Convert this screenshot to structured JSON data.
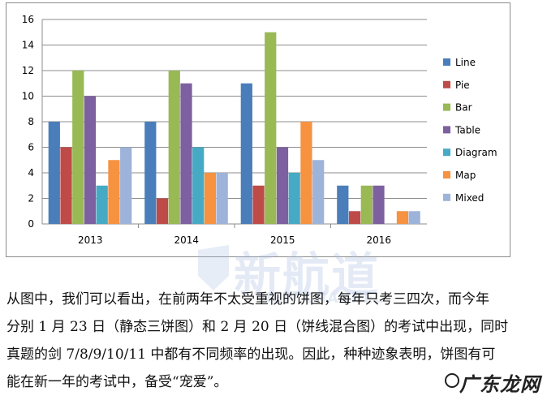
{
  "chart_data": {
    "type": "bar",
    "categories": [
      "2013",
      "2014",
      "2015",
      "2016"
    ],
    "yticks": [
      0,
      2,
      4,
      6,
      8,
      10,
      12,
      14,
      16
    ],
    "ylim": [
      0,
      16
    ],
    "grid": "horizontal",
    "legend_position": "right",
    "series": [
      {
        "name": "Line",
        "color": "#4a7ebb",
        "values": [
          8,
          8,
          11,
          3
        ]
      },
      {
        "name": "Pie",
        "color": "#be4b48",
        "values": [
          6,
          2,
          3,
          1
        ]
      },
      {
        "name": "Bar",
        "color": "#98b954",
        "values": [
          12,
          12,
          15,
          3
        ]
      },
      {
        "name": "Table",
        "color": "#7d60a0",
        "values": [
          10,
          11,
          6,
          3
        ]
      },
      {
        "name": "Diagram",
        "color": "#46aac5",
        "values": [
          3,
          6,
          4,
          0
        ]
      },
      {
        "name": "Map",
        "color": "#f69240",
        "values": [
          5,
          4,
          8,
          1
        ]
      },
      {
        "name": "Mixed",
        "color": "#9eb3d9",
        "values": [
          6,
          4,
          5,
          1
        ]
      }
    ]
  },
  "watermark": {
    "text": "新航道",
    "sub": "NEW CHANNEL",
    "icon": "logo-shield-icon"
  },
  "paragraph": {
    "lines": [
      "从图中，我们可以看出，在前两年不太受重视的饼图，每年只考三四次，而今年",
      "分别 1 月 23 日（静态三饼图）和 2 月 20 日（饼线混合图）的考试中出现，同时",
      "真题的剑 7/8/9/10/11 中都有不同频率的出现。因此，种种迹象表明，饼图有可",
      "能在新一年的考试中，备受“宠爱”。"
    ]
  },
  "corner_logo": {
    "text": "广东龙网",
    "icon": "dragon-logo-icon"
  }
}
